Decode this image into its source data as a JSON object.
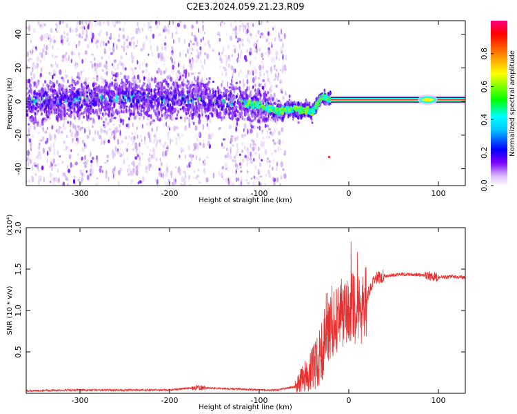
{
  "title": "C2E3.2024.059.21.23.R09",
  "chart_data": [
    {
      "type": "heatmap",
      "xlabel": "Height of straight line (km)",
      "ylabel": "Frequency (Hz)",
      "xlim": [
        -360,
        130
      ],
      "ylim": [
        -50,
        48
      ],
      "x_ticks": [
        -300,
        -200,
        -100,
        0,
        100
      ],
      "y_ticks": [
        -40,
        -20,
        0,
        20,
        40
      ],
      "x_tick_labels": [
        "-300",
        "-200",
        "-100",
        "0",
        "100"
      ],
      "y_tick_labels": [
        "-40",
        "-20",
        "0",
        "20",
        "40"
      ],
      "colorbar": {
        "label": "Normalized spectral amplitude",
        "range": [
          0,
          1
        ],
        "ticks": [
          0.0,
          0.2,
          0.4,
          0.6,
          0.8
        ],
        "tick_labels": [
          "0.0",
          "0.2",
          "0.4",
          "0.6",
          "0.8"
        ],
        "colormap": [
          "#ffffff",
          "#e0c8f8",
          "#7a00ff",
          "#0000ff",
          "#00ffff",
          "#00ff00",
          "#ffff00",
          "#ff8000",
          "#ff0000",
          "#ff0080"
        ]
      },
      "band_center": [
        {
          "x": -350,
          "f": 0
        },
        {
          "x": -250,
          "f": 2
        },
        {
          "x": -150,
          "f": 1
        },
        {
          "x": -100,
          "f": -2
        },
        {
          "x": -80,
          "f": -6
        },
        {
          "x": -60,
          "f": -4
        },
        {
          "x": -40,
          "f": -6
        },
        {
          "x": -30,
          "f": 3
        },
        {
          "x": -20,
          "f": 1
        },
        {
          "x": 0,
          "f": 1
        },
        {
          "x": 130,
          "f": 1
        }
      ],
      "grid": false
    },
    {
      "type": "line",
      "xlabel": "Height of straight line (km)",
      "ylabel": "SNR (10 * v/v)",
      "y_multiplier": "(x10⁴)",
      "xlim": [
        -360,
        130
      ],
      "ylim": [
        0,
        2.0
      ],
      "x_ticks": [
        -300,
        -200,
        -100,
        0,
        100
      ],
      "y_ticks": [
        0.5,
        1.0,
        1.5,
        2.0
      ],
      "x_tick_labels": [
        "-300",
        "-200",
        "-100",
        "0",
        "100"
      ],
      "y_tick_labels": [
        "0.5",
        "1.0",
        "1.5",
        "2.0"
      ],
      "series": [
        {
          "color": "#e83030",
          "points": [
            {
              "x": -360,
              "y": 0.03
            },
            {
              "x": -300,
              "y": 0.04
            },
            {
              "x": -250,
              "y": 0.04
            },
            {
              "x": -200,
              "y": 0.04
            },
            {
              "x": -170,
              "y": 0.07
            },
            {
              "x": -150,
              "y": 0.06
            },
            {
              "x": -120,
              "y": 0.05
            },
            {
              "x": -100,
              "y": 0.04
            },
            {
              "x": -80,
              "y": 0.04
            },
            {
              "x": -60,
              "y": 0.08
            },
            {
              "x": -50,
              "y": 0.2
            },
            {
              "x": -40,
              "y": 0.3
            },
            {
              "x": -30,
              "y": 0.5
            },
            {
              "x": -25,
              "y": 0.8
            },
            {
              "x": -20,
              "y": 0.9
            },
            {
              "x": -15,
              "y": 0.95
            },
            {
              "x": -10,
              "y": 1.0
            },
            {
              "x": -5,
              "y": 1.0
            },
            {
              "x": 0,
              "y": 1.05
            },
            {
              "x": 5,
              "y": 1.1
            },
            {
              "x": 10,
              "y": 1.0
            },
            {
              "x": 15,
              "y": 1.1
            },
            {
              "x": 20,
              "y": 1.15
            },
            {
              "x": 25,
              "y": 1.3
            },
            {
              "x": 30,
              "y": 1.38
            },
            {
              "x": 40,
              "y": 1.42
            },
            {
              "x": 60,
              "y": 1.44
            },
            {
              "x": 80,
              "y": 1.43
            },
            {
              "x": 90,
              "y": 1.42
            },
            {
              "x": 100,
              "y": 1.4
            },
            {
              "x": 115,
              "y": 1.41
            },
            {
              "x": 130,
              "y": 1.4
            }
          ]
        }
      ],
      "grid": false
    }
  ]
}
